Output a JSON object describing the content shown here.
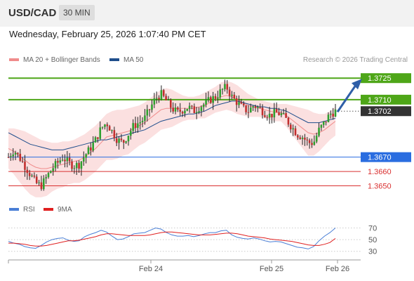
{
  "header": {
    "pair": "USD/CAD",
    "timeframe": "30 MIN"
  },
  "datetime": "Wednesday, February 25, 2026 1:07:40 PM CET",
  "legend": [
    {
      "label": "MA 20 + Bollinger Bands",
      "color": "#f08c8c"
    },
    {
      "label": "MA 50",
      "color": "#1f4e8c"
    }
  ],
  "credit": "Research © 2026 Trading Central",
  "rsi_legend": [
    {
      "label": "RSI",
      "color": "#4a7fd6"
    },
    {
      "label": "9MA",
      "color": "#e02020"
    }
  ],
  "chart_data": {
    "type": "candlestick",
    "x_ticks": [
      "Feb 24",
      "Feb 25",
      "Feb 26"
    ],
    "y_range": [
      1.364,
      1.373
    ],
    "current_price": "1.3702",
    "levels": [
      {
        "label": "1.3725",
        "value": 1.3725,
        "kind": "resistance",
        "color": "#4ea618"
      },
      {
        "label": "1.3710",
        "value": 1.371,
        "kind": "resistance",
        "color": "#4ea618"
      },
      {
        "label": "1.3702",
        "value": 1.3702,
        "kind": "last",
        "color": "#333333"
      },
      {
        "label": "1.3670",
        "value": 1.367,
        "kind": "pivot",
        "color": "#2a6de0"
      },
      {
        "label": "1.3660",
        "value": 1.366,
        "kind": "support",
        "color": "#d93030"
      },
      {
        "label": "1.3650",
        "value": 1.365,
        "kind": "support",
        "color": "#d93030"
      }
    ],
    "close_path": [
      1.367,
      1.3675,
      1.367,
      1.3664,
      1.3658,
      1.3652,
      1.365,
      1.3656,
      1.3662,
      1.3666,
      1.367,
      1.3666,
      1.3664,
      1.3665,
      1.3671,
      1.3676,
      1.3682,
      1.369,
      1.3694,
      1.3688,
      1.3682,
      1.368,
      1.3686,
      1.3692,
      1.3694,
      1.3697,
      1.3704,
      1.3711,
      1.3714,
      1.3709,
      1.3704,
      1.3701,
      1.3703,
      1.3705,
      1.3702,
      1.3705,
      1.3707,
      1.371,
      1.3712,
      1.3716,
      1.3719,
      1.3712,
      1.3708,
      1.3704,
      1.3702,
      1.3706,
      1.3704,
      1.3701,
      1.3699,
      1.3701,
      1.37,
      1.3696,
      1.3691,
      1.3686,
      1.3684,
      1.368,
      1.368,
      1.3689,
      1.3694,
      1.37,
      1.3702
    ],
    "ma50_path": [
      1.3687,
      1.3685,
      1.3683,
      1.3681,
      1.3679,
      1.3678,
      1.3677,
      1.3676,
      1.3675,
      1.3675,
      1.3675,
      1.3676,
      1.3677,
      1.3678,
      1.3679,
      1.368,
      1.3681,
      1.3682,
      1.3682,
      1.3683,
      1.3684,
      1.3685,
      1.3686,
      1.3687,
      1.3688,
      1.3689,
      1.3691,
      1.3693,
      1.3695,
      1.3696,
      1.3697,
      1.3698,
      1.3699,
      1.37,
      1.37,
      1.3701,
      1.3702,
      1.3704,
      1.3706,
      1.3707,
      1.3708,
      1.3709,
      1.3709,
      1.3708,
      1.3707,
      1.3706,
      1.3705,
      1.3705,
      1.3704,
      1.3704,
      1.3703,
      1.3702,
      1.37,
      1.3698,
      1.3696,
      1.3694,
      1.3694,
      1.3694,
      1.3695,
      1.3696,
      1.3697
    ],
    "ma20_path": [
      1.3676,
      1.3674,
      1.3671,
      1.3668,
      1.3665,
      1.3663,
      1.3662,
      1.3662,
      1.3663,
      1.3664,
      1.3665,
      1.3666,
      1.3667,
      1.3668,
      1.367,
      1.3673,
      1.3676,
      1.368,
      1.3684,
      1.3685,
      1.3686,
      1.3687,
      1.3688,
      1.369,
      1.3692,
      1.3694,
      1.3697,
      1.37,
      1.3703,
      1.3704,
      1.3704,
      1.3704,
      1.3704,
      1.3704,
      1.3704,
      1.3705,
      1.3706,
      1.3708,
      1.371,
      1.3712,
      1.3713,
      1.3712,
      1.371,
      1.3708,
      1.3706,
      1.3705,
      1.3704,
      1.3703,
      1.3702,
      1.3701,
      1.3701,
      1.3699,
      1.3696,
      1.3693,
      1.369,
      1.3687,
      1.3686,
      1.3687,
      1.3689,
      1.3692,
      1.3695
    ],
    "bb_upper": [
      1.369,
      1.369,
      1.3689,
      1.3688,
      1.3686,
      1.3684,
      1.3682,
      1.3681,
      1.368,
      1.368,
      1.3681,
      1.3681,
      1.3682,
      1.3684,
      1.3686,
      1.3689,
      1.3692,
      1.3696,
      1.37,
      1.3702,
      1.3703,
      1.3703,
      1.3704,
      1.3705,
      1.3706,
      1.3708,
      1.3711,
      1.3714,
      1.3717,
      1.3718,
      1.3717,
      1.3715,
      1.3713,
      1.3712,
      1.3712,
      1.3713,
      1.3715,
      1.3717,
      1.3719,
      1.3722,
      1.3723,
      1.3722,
      1.372,
      1.3717,
      1.3714,
      1.3712,
      1.371,
      1.3709,
      1.3708,
      1.3707,
      1.3707,
      1.3707,
      1.3706,
      1.3705,
      1.3704,
      1.3703,
      1.3701,
      1.37,
      1.37,
      1.3702,
      1.3705
    ],
    "bb_lower": [
      1.3662,
      1.3658,
      1.3653,
      1.3648,
      1.3644,
      1.3642,
      1.3642,
      1.3643,
      1.3646,
      1.3648,
      1.3649,
      1.3651,
      1.3652,
      1.3652,
      1.3654,
      1.3657,
      1.366,
      1.3664,
      1.3668,
      1.3668,
      1.3669,
      1.3671,
      1.3672,
      1.3675,
      1.3678,
      1.368,
      1.3683,
      1.3686,
      1.3689,
      1.369,
      1.3691,
      1.3693,
      1.3695,
      1.3696,
      1.3696,
      1.3697,
      1.3697,
      1.3699,
      1.3701,
      1.3702,
      1.3703,
      1.3702,
      1.37,
      1.3699,
      1.3698,
      1.3698,
      1.3698,
      1.3697,
      1.3696,
      1.3695,
      1.3695,
      1.3691,
      1.3686,
      1.3681,
      1.3676,
      1.3671,
      1.3671,
      1.3674,
      1.3678,
      1.3682,
      1.3685
    ],
    "forecast": {
      "from": 1.3702,
      "to": 1.3725
    },
    "rsi": {
      "y_ticks": [
        "70",
        "50",
        "30"
      ],
      "y_range": [
        20,
        85
      ],
      "rsi_path": [
        47,
        44,
        42,
        38,
        36,
        35,
        40,
        46,
        50,
        52,
        53,
        49,
        47,
        48,
        55,
        59,
        62,
        66,
        63,
        56,
        50,
        51,
        55,
        60,
        61,
        62,
        66,
        70,
        68,
        62,
        58,
        56,
        56,
        57,
        55,
        57,
        60,
        62,
        62,
        65,
        66,
        58,
        54,
        52,
        51,
        53,
        51,
        48,
        46,
        47,
        46,
        43,
        40,
        37,
        36,
        34,
        38,
        48,
        56,
        62,
        70
      ],
      "ma_path": [
        44,
        44,
        43,
        42,
        40,
        39,
        39,
        40,
        42,
        44,
        46,
        48,
        48,
        49,
        51,
        53,
        55,
        58,
        60,
        60,
        59,
        58,
        57,
        57,
        57,
        57,
        58,
        60,
        62,
        63,
        63,
        62,
        61,
        60,
        59,
        58,
        58,
        58,
        59,
        60,
        61,
        61,
        60,
        58,
        56,
        55,
        54,
        53,
        51,
        50,
        49,
        48,
        47,
        45,
        43,
        41,
        40,
        40,
        42,
        45,
        52
      ]
    }
  }
}
